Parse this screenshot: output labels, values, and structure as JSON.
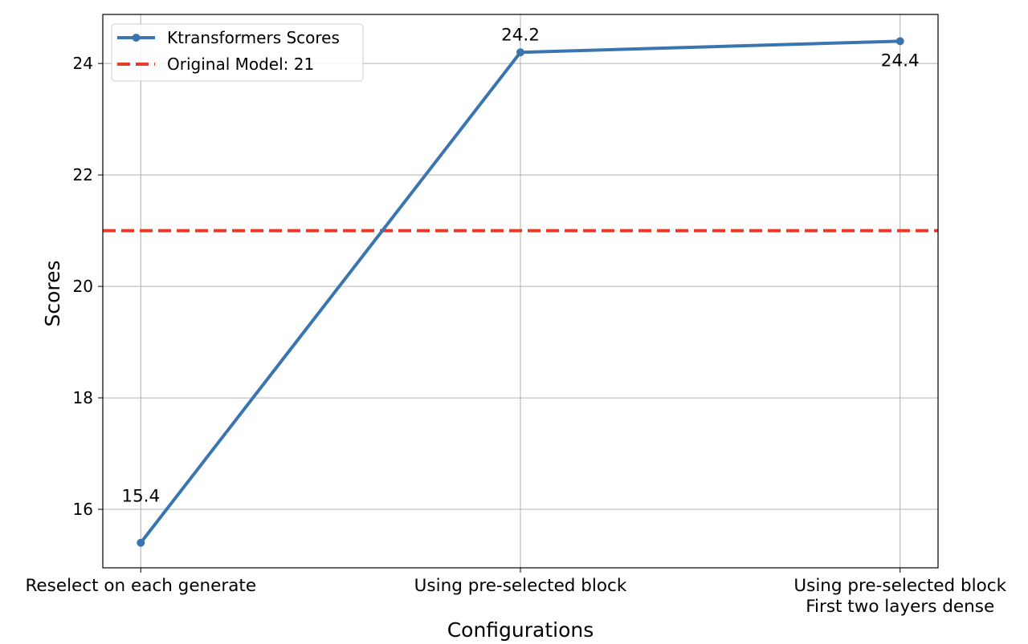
{
  "chart_data": {
    "type": "line",
    "title": "",
    "xlabel": "Configurations",
    "ylabel": "Scores",
    "categories": [
      [
        "Reselect on each generate"
      ],
      [
        "Using pre-selected block"
      ],
      [
        "Using pre-selected block",
        "First two layers dense"
      ]
    ],
    "series": [
      {
        "name": "Ktransformers Scores",
        "values": [
          15.4,
          24.2,
          24.4
        ],
        "color": "#3a75b0",
        "data_labels": [
          "15.4",
          "24.2",
          "24.4"
        ]
      }
    ],
    "reference_lines": [
      {
        "name": "Original Model: 21",
        "y": 21,
        "color": "#e8392b",
        "style": "dashed"
      }
    ],
    "yticks": [
      16,
      18,
      20,
      22,
      24
    ],
    "ylim": [
      14.95,
      24.88
    ],
    "xlim": [
      -0.1,
      2.1
    ],
    "grid": true,
    "legend_position": "top-left"
  }
}
